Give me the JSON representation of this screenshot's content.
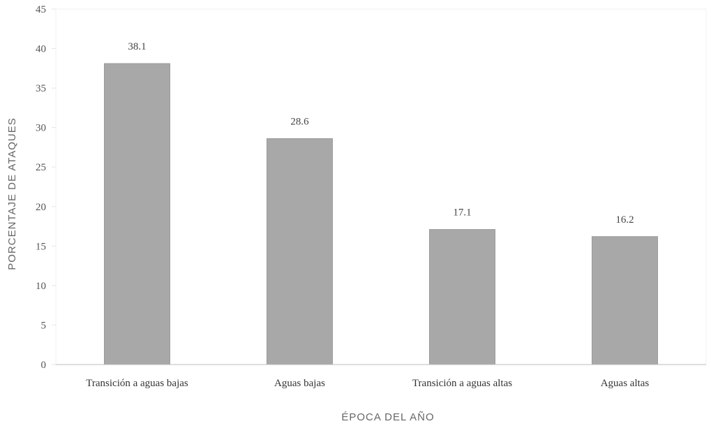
{
  "chart_data": {
    "type": "bar",
    "categories": [
      "Transición a aguas bajas",
      "Aguas bajas",
      "Transición a aguas altas",
      "Aguas altas"
    ],
    "values": [
      38.1,
      28.6,
      17.1,
      16.2
    ],
    "data_labels": [
      "38.1",
      "28.6",
      "17.1",
      "16.2"
    ],
    "title": "",
    "xlabel": "ÉPOCA DEL AÑO",
    "ylabel": "PORCENTAJE DE ATAQUES",
    "ylim": [
      0,
      45
    ],
    "yticks": [
      0,
      5,
      10,
      15,
      20,
      25,
      30,
      35,
      40,
      45
    ],
    "grid": false,
    "legend": "none",
    "bar_color": "#a8a8a8"
  }
}
